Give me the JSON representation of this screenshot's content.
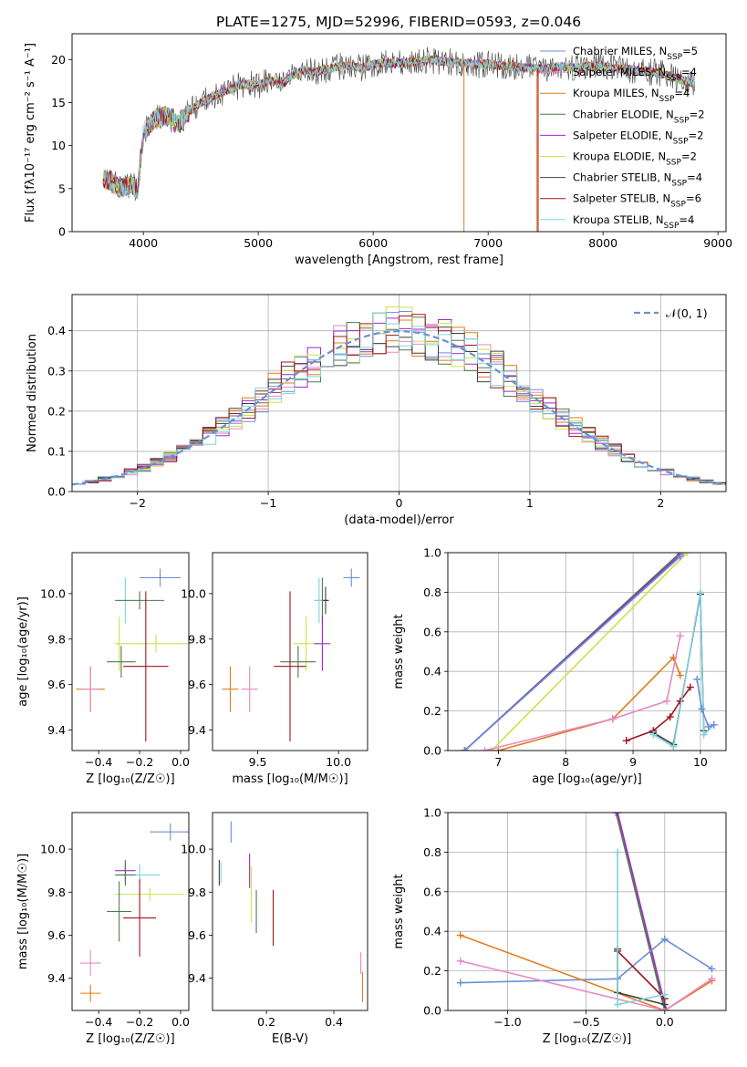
{
  "figure": {
    "title": "PLATE=1275, MJD=52996, FIBERID=0593, z=0.046"
  },
  "chart_data": [
    {
      "id": "spectrum",
      "type": "line",
      "xlabel": "wavelength [Angstrom, rest frame]",
      "ylabel": "Flux [fλ10⁻¹⁷ erg cm⁻² s⁻¹ A⁻¹]",
      "xlim": [
        3380,
        9070
      ],
      "ylim": [
        0,
        23
      ],
      "xticks": [
        4000,
        5000,
        6000,
        7000,
        8000,
        9000
      ],
      "yticks": [
        0,
        5,
        10,
        15,
        20
      ],
      "grid": false,
      "legend_placement": "top-right",
      "continuum": {
        "x": [
          3650,
          3700,
          3800,
          3900,
          3950,
          4000,
          4100,
          4200,
          4300,
          4400,
          4500,
          4600,
          4700,
          4800,
          4900,
          5000,
          5100,
          5200,
          5300,
          5400,
          5500,
          5600,
          5700,
          5800,
          5900,
          6000,
          6100,
          6200,
          6300,
          6400,
          6500,
          6600,
          6700,
          6800,
          6900,
          7000,
          7100,
          7200,
          7300,
          7400,
          7500,
          7600,
          7700,
          7800,
          7900,
          8000,
          8100,
          8200,
          8300,
          8400,
          8500,
          8600,
          8700,
          8800
        ],
        "y": [
          6.2,
          6.0,
          5.0,
          5.5,
          4.8,
          11.5,
          13.0,
          13.5,
          12.5,
          14.0,
          15.0,
          15.7,
          16.3,
          16.8,
          17.2,
          17.0,
          17.6,
          17.0,
          18.2,
          18.8,
          18.5,
          18.9,
          19.2,
          19.3,
          19.0,
          19.4,
          19.7,
          19.5,
          19.7,
          19.8,
          19.9,
          19.8,
          19.7,
          19.6,
          19.4,
          19.5,
          19.3,
          19.2,
          19.1,
          19.0,
          18.9,
          19.2,
          19.1,
          19.0,
          19.3,
          19.2,
          19.0,
          18.9,
          18.7,
          18.6,
          18.4,
          18.0,
          17.6,
          17.2
        ]
      },
      "series": [
        {
          "name": "Chabrier MILES, N$_{SSP}$=5",
          "color": "#6b8fd6"
        },
        {
          "name": "Salpeter MILES, N$_{SSP}$=4",
          "color": "#e78ac3"
        },
        {
          "name": "Kroupa MILES, N$_{SSP}$=4",
          "color": "#e07b1a"
        },
        {
          "name": "Chabrier ELODIE, N$_{SSP}$=2",
          "color": "#4c7a4c"
        },
        {
          "name": "Salpeter ELODIE, N$_{SSP}$=2",
          "color": "#9e2ac9"
        },
        {
          "name": "Kroupa ELODIE, N$_{SSP}$=2",
          "color": "#cde04a"
        },
        {
          "name": "Chabrier STELIB, N$_{SSP}$=4",
          "color": "#404040"
        },
        {
          "name": "Salpeter STELIB, N$_{SSP}$=6",
          "color": "#a0141e"
        },
        {
          "name": "Kroupa STELIB, N$_{SSP}$=4",
          "color": "#7fd3de"
        }
      ]
    },
    {
      "id": "residuals",
      "type": "line",
      "xlabel": "(data-model)/error",
      "ylabel": "Normed distribution",
      "xlim": [
        -2.5,
        2.5
      ],
      "ylim": [
        0,
        0.49
      ],
      "xticks": [
        -2,
        -1,
        0,
        1,
        2
      ],
      "yticks": [
        0.0,
        0.1,
        0.2,
        0.3,
        0.4
      ],
      "grid": true,
      "legend_placement": "top-right",
      "gaussian_label": "𝒩(0, 1)",
      "gaussian_color": "#6b8fd6",
      "bin_width": 0.1
    },
    {
      "id": "age-vs-Z",
      "type": "scatter",
      "xlabel": "Z [log₁₀(Z/Z☉)]",
      "ylabel": "age  [log₁₀(age/yr)]",
      "xlim": [
        -0.53,
        0.04
      ],
      "ylim": [
        9.31,
        10.18
      ],
      "xticks": [
        -0.4,
        -0.2,
        0.0
      ],
      "yticks": [
        9.4,
        9.6,
        9.8,
        10.0
      ],
      "points": [
        {
          "x": -0.1,
          "y": 10.07,
          "xerr": 0.1,
          "yerr": 0.04,
          "color": "#6b8fd6"
        },
        {
          "x": -0.27,
          "y": 9.97,
          "xerr": 0.05,
          "yerr": 0.1,
          "color": "#7fd3de"
        },
        {
          "x": -0.2,
          "y": 9.97,
          "xerr": 0.12,
          "yerr": 0.04,
          "color": "#4c7a4c"
        },
        {
          "x": -0.12,
          "y": 9.78,
          "xerr": 0.2,
          "yerr": 0.04,
          "color": "#cde04a"
        },
        {
          "x": -0.3,
          "y": 9.78,
          "xerr": 0.01,
          "yerr": 0.12,
          "color": "#cde04a"
        },
        {
          "x": -0.29,
          "y": 9.7,
          "xerr": 0.07,
          "yerr": 0.07,
          "color": "#4c7a4c"
        },
        {
          "x": -0.17,
          "y": 9.68,
          "xerr": 0.11,
          "yerr": 0.33,
          "color": "#a0141e"
        },
        {
          "x": -0.44,
          "y": 9.58,
          "xerr": 0.07,
          "yerr": 0.1,
          "color": "#e07b1a"
        },
        {
          "x": -0.44,
          "y": 9.58,
          "xerr": 0.04,
          "yerr": 0.1,
          "color": "#e78ac3"
        }
      ]
    },
    {
      "id": "age-vs-mass",
      "type": "scatter",
      "xlabel": "mass [log₁₀(M/M☉)]",
      "ylabel": "",
      "xlim": [
        9.22,
        10.18
      ],
      "ylim": [
        9.31,
        10.18
      ],
      "xticks": [
        9.5,
        10.0
      ],
      "yticks": [
        9.4,
        9.6,
        9.8,
        10.0
      ],
      "points": [
        {
          "x": 10.08,
          "y": 10.07,
          "xerr": 0.05,
          "yerr": 0.04,
          "color": "#6b8fd6"
        },
        {
          "x": 9.9,
          "y": 9.97,
          "xerr": 0.04,
          "yerr": 0.1,
          "color": "#4c7a4c"
        },
        {
          "x": 9.88,
          "y": 9.97,
          "xerr": 0.03,
          "yerr": 0.1,
          "color": "#7fd3de"
        },
        {
          "x": 9.92,
          "y": 9.97,
          "xerr": 0.02,
          "yerr": 0.06,
          "color": "#404040"
        },
        {
          "x": 9.8,
          "y": 9.78,
          "xerr": 0.08,
          "yerr": 0.12,
          "color": "#cde04a"
        },
        {
          "x": 9.9,
          "y": 9.78,
          "xerr": 0.05,
          "yerr": 0.12,
          "color": "#9e2ac9"
        },
        {
          "x": 9.75,
          "y": 9.7,
          "xerr": 0.11,
          "yerr": 0.07,
          "color": "#4c7a4c"
        },
        {
          "x": 9.7,
          "y": 9.68,
          "xerr": 0.1,
          "yerr": 0.33,
          "color": "#a0141e"
        },
        {
          "x": 9.33,
          "y": 9.58,
          "xerr": 0.05,
          "yerr": 0.1,
          "color": "#e07b1a"
        },
        {
          "x": 9.45,
          "y": 9.58,
          "xerr": 0.05,
          "yerr": 0.1,
          "color": "#e78ac3"
        }
      ]
    },
    {
      "id": "weight-vs-age",
      "type": "line",
      "xlabel": "age  [log₁₀(age/yr)]",
      "ylabel": "mass weight",
      "xlim": [
        6.25,
        10.38
      ],
      "ylim": [
        0,
        1.0
      ],
      "xticks": [
        7,
        8,
        9,
        10
      ],
      "yticks": [
        0.0,
        0.2,
        0.4,
        0.6,
        0.8,
        1.0
      ],
      "grid": true,
      "series": [
        {
          "color": "#4c7a4c",
          "x": [
            6.5,
            9.7
          ],
          "y": [
            0.0,
            1.0
          ]
        },
        {
          "color": "#9e2ac9",
          "x": [
            6.5,
            9.7
          ],
          "y": [
            0.0,
            0.99
          ]
        },
        {
          "color": "#cde04a",
          "x": [
            6.9,
            9.8
          ],
          "y": [
            0.0,
            1.0
          ]
        },
        {
          "color": "#6b8fd6",
          "x": [
            6.5,
            9.7
          ],
          "y": [
            0.0,
            0.98
          ]
        },
        {
          "color": "#e07b1a",
          "x": [
            7.0,
            8.7,
            9.6,
            9.7
          ],
          "y": [
            0.0,
            0.16,
            0.47,
            0.38
          ]
        },
        {
          "color": "#e78ac3",
          "x": [
            6.8,
            8.7,
            9.5,
            9.7
          ],
          "y": [
            0.0,
            0.16,
            0.25,
            0.58
          ]
        },
        {
          "color": "#a0141e",
          "x": [
            8.9,
            9.3,
            9.55,
            9.7,
            9.85
          ],
          "y": [
            0.05,
            0.1,
            0.17,
            0.25,
            0.32
          ]
        },
        {
          "color": "#404040",
          "x": [
            9.3,
            9.6,
            10.0,
            10.05
          ],
          "y": [
            0.09,
            0.03,
            0.79,
            0.1
          ]
        },
        {
          "color": "#7fd3de",
          "x": [
            9.3,
            9.6,
            10.0,
            10.05,
            10.2
          ],
          "y": [
            0.08,
            0.02,
            0.8,
            0.08,
            0.13
          ]
        },
        {
          "color": "#6b8fd6",
          "x": [
            9.95,
            10.02,
            10.12,
            10.2
          ],
          "y": [
            0.36,
            0.21,
            0.12,
            0.13
          ]
        }
      ]
    },
    {
      "id": "mass-vs-Z",
      "type": "scatter",
      "xlabel": "Z [log₁₀(Z/Z☉)]",
      "ylabel": "mass [log₁₀(M/M☉)]",
      "xlim": [
        -0.53,
        0.04
      ],
      "ylim": [
        9.25,
        10.17
      ],
      "xticks": [
        -0.4,
        -0.2,
        0.0
      ],
      "yticks": [
        9.4,
        9.6,
        9.8,
        10.0
      ],
      "points": [
        {
          "x": -0.05,
          "y": 10.08,
          "xerr": 0.1,
          "yerr": 0.04,
          "color": "#6b8fd6"
        },
        {
          "x": -0.27,
          "y": 9.9,
          "xerr": 0.05,
          "yerr": 0.05,
          "color": "#9e2ac9"
        },
        {
          "x": -0.2,
          "y": 9.88,
          "xerr": 0.1,
          "yerr": 0.05,
          "color": "#7fd3de"
        },
        {
          "x": -0.27,
          "y": 9.88,
          "xerr": 0.05,
          "yerr": 0.05,
          "color": "#4c7a4c"
        },
        {
          "x": -0.15,
          "y": 9.79,
          "xerr": 0.17,
          "yerr": 0.03,
          "color": "#cde04a"
        },
        {
          "x": -0.3,
          "y": 9.71,
          "xerr": 0.06,
          "yerr": 0.14,
          "color": "#4c7a4c"
        },
        {
          "x": -0.2,
          "y": 9.68,
          "xerr": 0.08,
          "yerr": 0.18,
          "color": "#a0141e"
        },
        {
          "x": -0.44,
          "y": 9.47,
          "xerr": 0.05,
          "yerr": 0.06,
          "color": "#e78ac3"
        },
        {
          "x": -0.44,
          "y": 9.33,
          "xerr": 0.05,
          "yerr": 0.04,
          "color": "#e07b1a"
        }
      ]
    },
    {
      "id": "mass-vs-ebv",
      "type": "scatter",
      "xlabel": "E(B-V)",
      "ylabel": "",
      "xlim": [
        0.04,
        0.5
      ],
      "ylim": [
        9.25,
        10.17
      ],
      "xticks": [
        0.2,
        0.4
      ],
      "yticks": [
        9.4,
        9.6,
        9.8,
        10.0
      ],
      "points": [
        {
          "x": 0.095,
          "y": 10.08,
          "yerr": 0.05,
          "color": "#6b8fd6"
        },
        {
          "x": 0.15,
          "y": 9.9,
          "yerr": 0.08,
          "color": "#9e2ac9"
        },
        {
          "x": 0.06,
          "y": 9.89,
          "yerr": 0.06,
          "color": "#404040"
        },
        {
          "x": 0.065,
          "y": 9.89,
          "yerr": 0.05,
          "color": "#7fd3de"
        },
        {
          "x": 0.155,
          "y": 9.79,
          "yerr": 0.13,
          "color": "#cde04a"
        },
        {
          "x": 0.17,
          "y": 9.71,
          "yerr": 0.1,
          "color": "#4c7a4c"
        },
        {
          "x": 0.22,
          "y": 9.68,
          "yerr": 0.13,
          "color": "#a0141e"
        },
        {
          "x": 0.48,
          "y": 9.47,
          "yerr": 0.05,
          "color": "#e78ac3"
        },
        {
          "x": 0.485,
          "y": 9.36,
          "yerr": 0.07,
          "color": "#e07b1a"
        }
      ]
    },
    {
      "id": "weight-vs-Z",
      "type": "line",
      "xlabel": "Z [log₁₀(Z/Z☉)]",
      "ylabel": "mass weight",
      "xlim": [
        -1.38,
        0.39
      ],
      "ylim": [
        0,
        1.0
      ],
      "xticks": [
        -1.0,
        -0.5,
        0.0
      ],
      "yticks": [
        0.0,
        0.2,
        0.4,
        0.6,
        0.8,
        1.0
      ],
      "grid": true,
      "series": [
        {
          "color": "#cde04a",
          "x": [
            -0.3,
            0.0
          ],
          "y": [
            1.0,
            0.0
          ]
        },
        {
          "color": "#4c7a4c",
          "x": [
            -0.31,
            0.0
          ],
          "y": [
            1.0,
            0.0
          ]
        },
        {
          "color": "#9e2ac9",
          "x": [
            -0.3,
            0.01
          ],
          "y": [
            1.0,
            0.0
          ]
        },
        {
          "color": "#6b8fd6",
          "x": [
            -1.3,
            -0.3,
            0.0,
            0.3
          ],
          "y": [
            0.14,
            0.16,
            0.36,
            0.21
          ]
        },
        {
          "color": "#e07b1a",
          "x": [
            -1.3,
            0.0,
            0.3
          ],
          "y": [
            0.38,
            0.0,
            0.15
          ]
        },
        {
          "color": "#e78ac3",
          "x": [
            -1.3,
            0.0,
            0.3
          ],
          "y": [
            0.25,
            0.0,
            0.16
          ]
        },
        {
          "color": "#a0141e",
          "x": [
            -0.3,
            0.0
          ],
          "y": [
            0.3,
            0.06
          ]
        },
        {
          "color": "#404040",
          "x": [
            -0.3,
            -0.3,
            0.0
          ],
          "y": [
            0.31,
            0.09,
            0.03
          ]
        },
        {
          "color": "#7fd3de",
          "x": [
            -0.3,
            -0.3,
            0.0
          ],
          "y": [
            0.8,
            0.03,
            0.08
          ]
        }
      ]
    }
  ]
}
